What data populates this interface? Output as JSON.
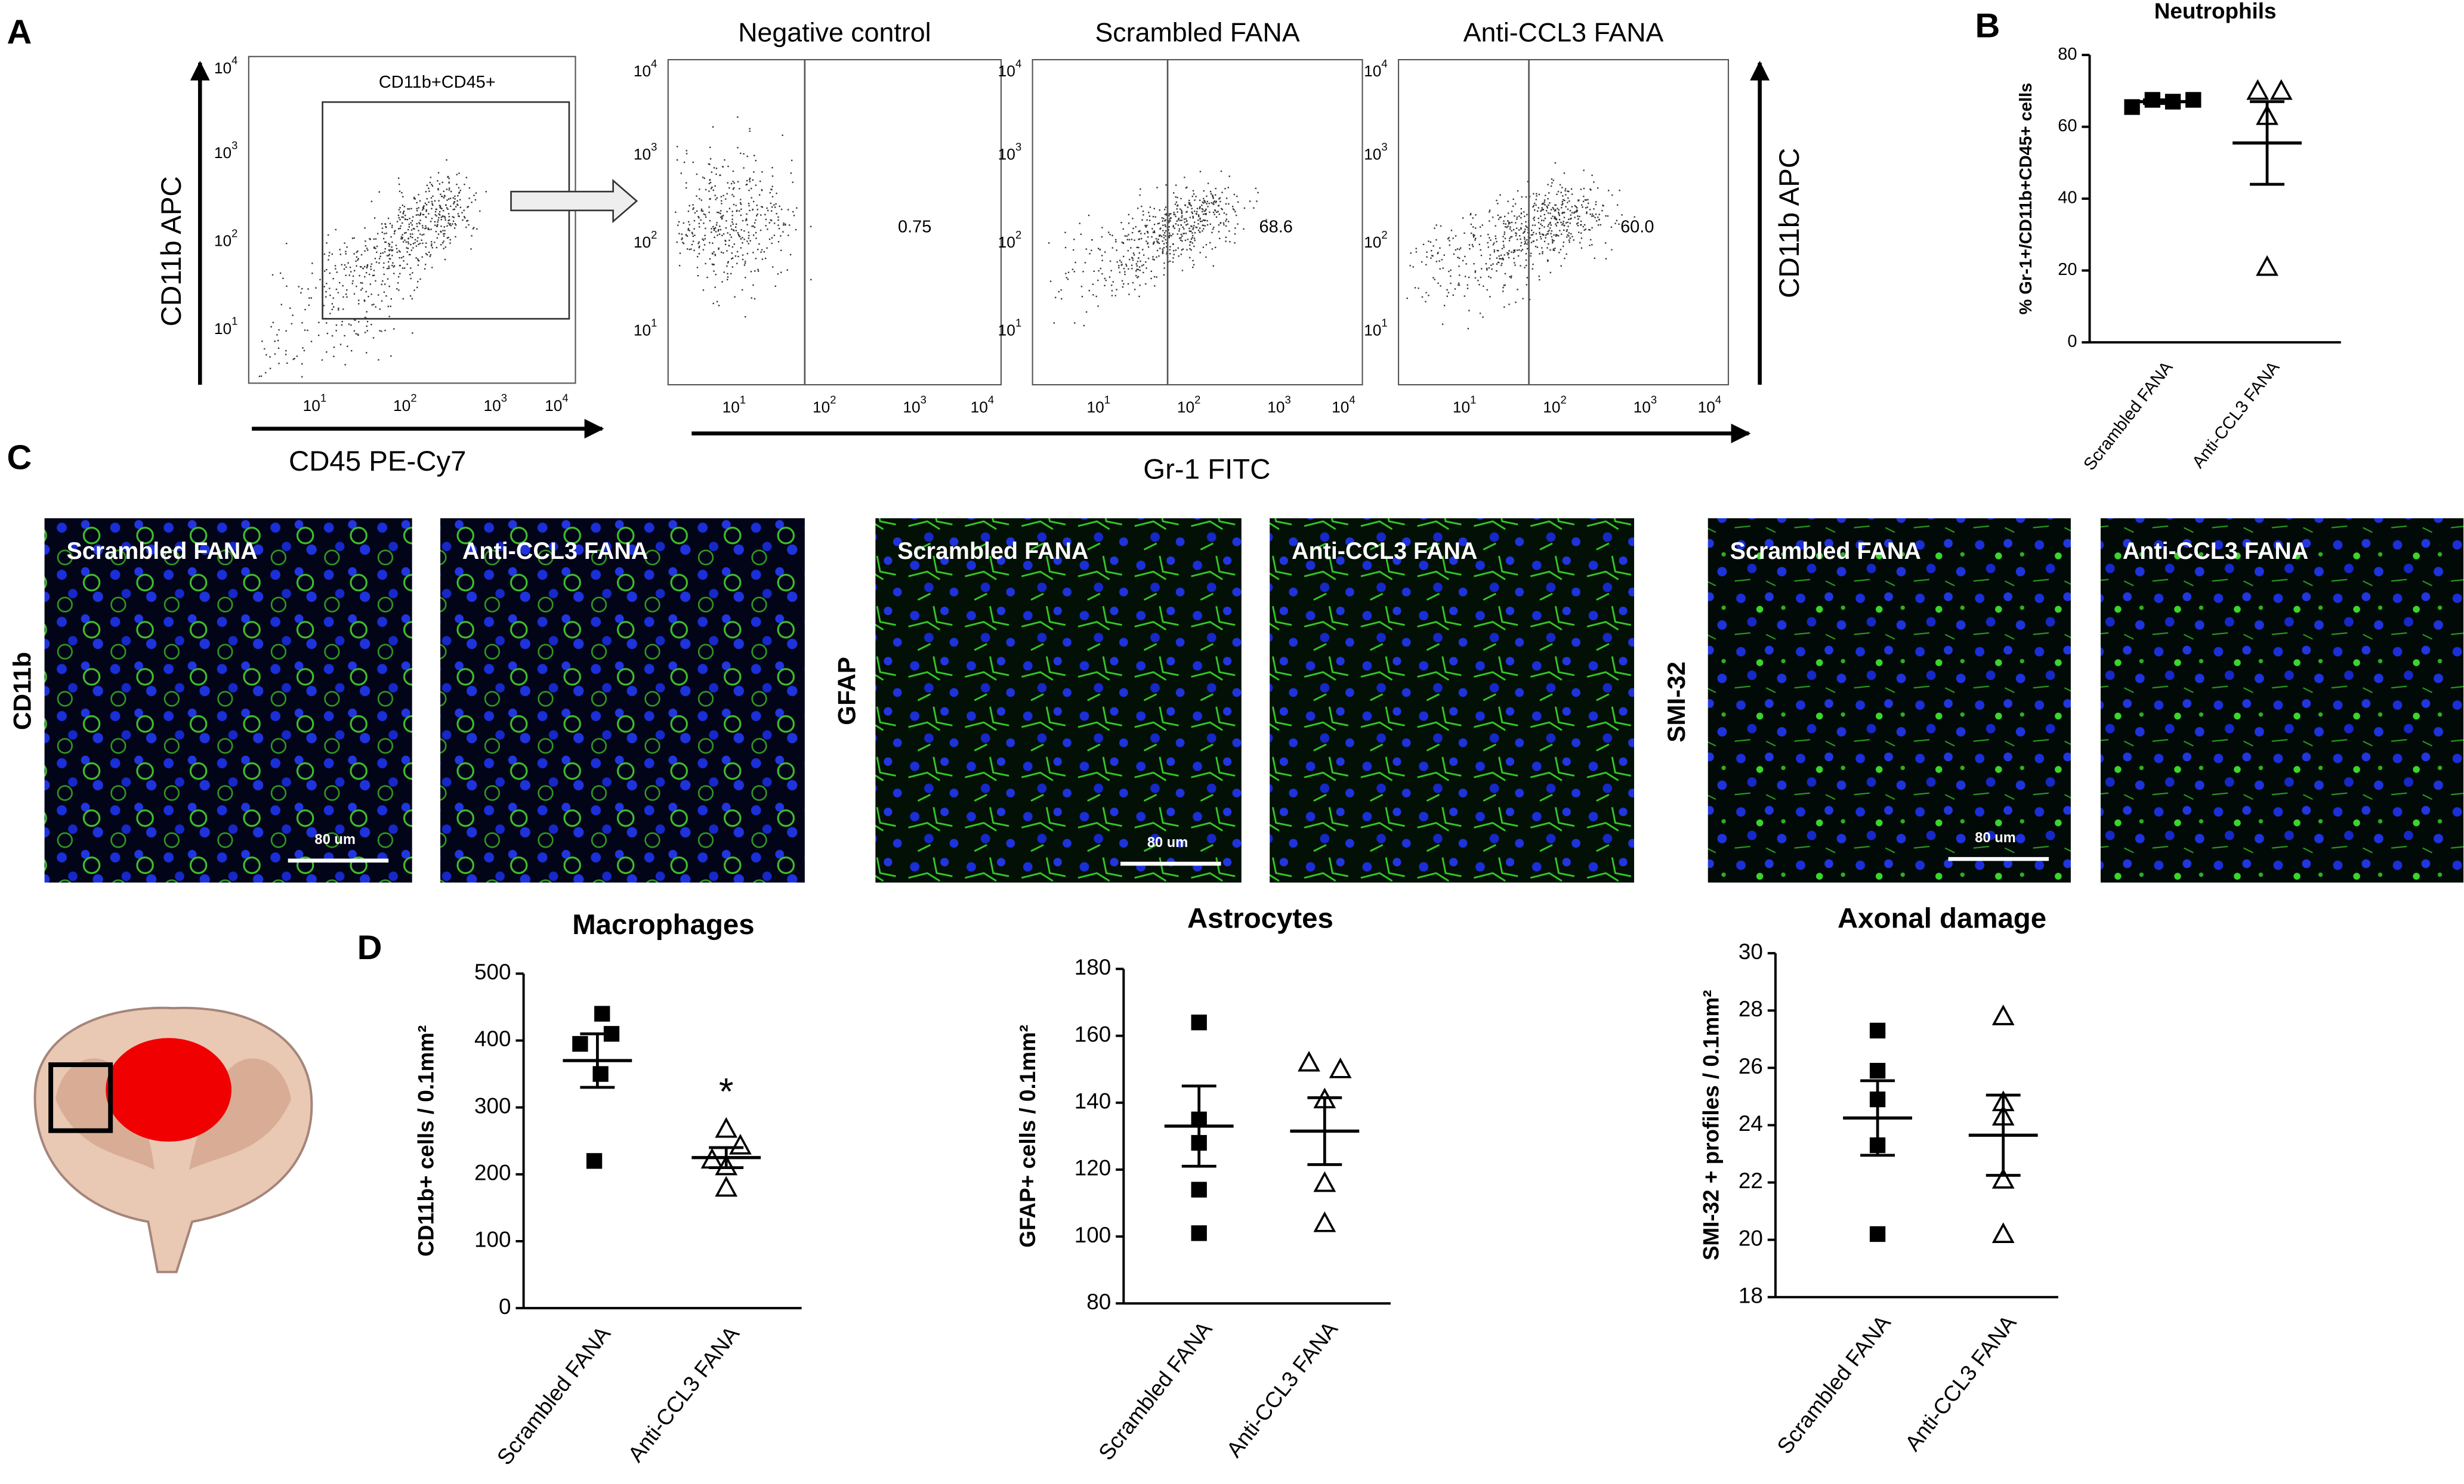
{
  "panel_labels": [
    "A",
    "B",
    "C",
    "D"
  ],
  "flow": {
    "gate_label": "CD11b+CD45+",
    "titles": [
      "Negative control",
      "Scrambled FANA",
      "Anti-CCL3 FANA"
    ],
    "gate_values": [
      "0.75",
      "68.6",
      "60.0"
    ],
    "y_label": "CD11b APC",
    "x_label": "CD45 PE-Cy7",
    "gr1_label": "Gr-1 FITC",
    "right_label": "CD11b APC",
    "tick_base": "10",
    "tick_exponents": [
      1,
      2,
      3,
      4
    ]
  },
  "micrographs": {
    "markers": [
      "CD11b",
      "GFAP",
      "SMI-32"
    ],
    "captions": [
      "Scrambled FANA",
      "Anti-CCL3  FANA"
    ],
    "scale_bar": "80 um"
  },
  "chart_data": [
    {
      "type": "dotplot",
      "title": "Neutrophils",
      "y_label": "% Gr-1+/CD11b+CD45+ cells",
      "categories": [
        "Scrambled FANA",
        "Anti-CCL3 FANA"
      ],
      "markers": [
        "square",
        "triangle"
      ],
      "groups": [
        {
          "values": [
            65.5,
            67.5,
            67,
            67.5
          ],
          "mean": 67,
          "sem": 0.5
        },
        {
          "values": [
            70,
            70,
            63,
            21
          ],
          "mean": 55.5,
          "sem": 11.5
        }
      ],
      "ylim": [
        0,
        80
      ],
      "yticks": [
        0,
        20,
        40,
        60,
        80
      ]
    },
    {
      "type": "dotplot",
      "title": "Macrophages",
      "y_label": "CD11b+ cells / 0.1mm²",
      "categories": [
        "Scrambled FANA",
        "Anti-CCL3 FANA"
      ],
      "markers": [
        "square",
        "triangle"
      ],
      "groups": [
        {
          "values": [
            440,
            410,
            395,
            350,
            220
          ],
          "mean": 370,
          "sem": 40
        },
        {
          "values": [
            268,
            243,
            222,
            212,
            180
          ],
          "mean": 225,
          "sem": 15
        }
      ],
      "annotation": "*",
      "ylim": [
        0,
        500
      ],
      "yticks": [
        0,
        100,
        200,
        300,
        400,
        500
      ]
    },
    {
      "type": "dotplot",
      "title": "Astrocytes",
      "y_label": "GFAP+ cells / 0.1mm²",
      "categories": [
        "Scrambled FANA",
        "Anti-CCL3 FANA"
      ],
      "markers": [
        "square",
        "triangle"
      ],
      "groups": [
        {
          "values": [
            164,
            135,
            128,
            114,
            101
          ],
          "mean": 133,
          "sem": 12
        },
        {
          "values": [
            152,
            150,
            141,
            116,
            104
          ],
          "mean": 131.5,
          "sem": 10
        }
      ],
      "ylim": [
        80,
        180
      ],
      "yticks": [
        80,
        100,
        120,
        140,
        160,
        180
      ]
    },
    {
      "type": "dotplot",
      "title": "Axonal damage",
      "y_label": "SMI-32 + profiles / 0.1mm²",
      "categories": [
        "Scrambled FANA",
        "Anti-CCL3 FANA"
      ],
      "markers": [
        "square",
        "triangle"
      ],
      "groups": [
        {
          "values": [
            27.3,
            25.9,
            24.9,
            23.3,
            20.2
          ],
          "mean": 24.25,
          "sem": 1.3
        },
        {
          "values": [
            27.8,
            24.8,
            24.3,
            22.1,
            20.2
          ],
          "mean": 23.65,
          "sem": 1.4
        }
      ],
      "ylim": [
        18,
        30
      ],
      "yticks": [
        18,
        20,
        22,
        24,
        26,
        28,
        30
      ]
    }
  ]
}
